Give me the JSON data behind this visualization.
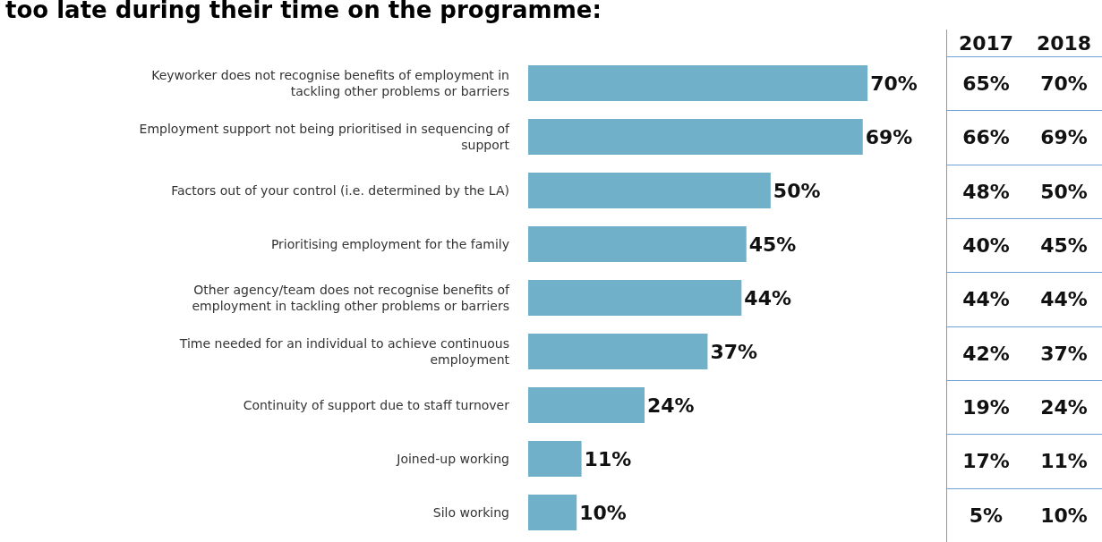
{
  "chart_data": {
    "type": "bar",
    "orientation": "horizontal",
    "title": "too late during their time on the programme:",
    "categories": [
      "Keyworker does not recognise benefits of employment in tackling other problems or barriers",
      "Employment support not being prioritised in sequencing of support",
      "Factors out of your control (i.e. determined by the LA)",
      "Prioritising employment for the family",
      "Other agency/team does not recognise benefits of employment in tackling other problems or barriers",
      "Time needed for an individual to achieve continuous employment",
      "Continuity of support due to staff turnover",
      "Joined-up working",
      "Silo working"
    ],
    "values": [
      70,
      69,
      50,
      45,
      44,
      37,
      24,
      11,
      10
    ],
    "value_labels": [
      "70%",
      "69%",
      "50%",
      "45%",
      "44%",
      "37%",
      "24%",
      "11%",
      "10%"
    ],
    "color": "#70b0c8",
    "annotations": [
      "2017",
      "2018",
      "65%",
      "70%",
      "66%",
      "69%",
      "48%",
      "50%",
      "40%",
      "45%",
      "44%",
      "44%",
      "42%",
      "37%",
      "19%",
      "24%",
      "17%",
      "11%",
      "5%",
      "10%"
    ]
  }
}
